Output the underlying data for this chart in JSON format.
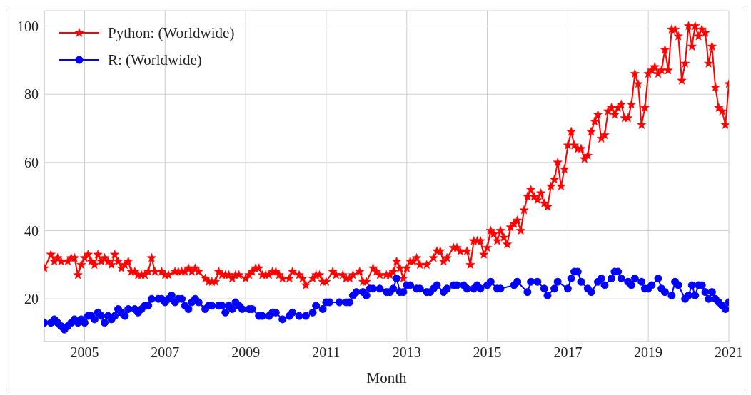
{
  "chart_data": {
    "type": "line",
    "xlabel": "Month",
    "grid": true,
    "legend": "top left",
    "line_style": "solid",
    "xlim": [
      "2004-01",
      "2021-01"
    ],
    "xticks": [
      "2005",
      "2007",
      "2009",
      "2011",
      "2013",
      "2015",
      "2017",
      "2019",
      "2021"
    ],
    "ylim": [
      7.5,
      104.5
    ],
    "yticks": [
      20,
      40,
      60,
      80,
      100
    ],
    "series": [
      {
        "name": "Python: (Worldwide)",
        "color": "#ff0000",
        "marker": "star",
        "x": [
          "2004-01",
          "2004-03",
          "2004-04",
          "2004-05",
          "2004-06",
          "2004-08",
          "2004-09",
          "2004-10",
          "2004-11",
          "2004-12",
          "2005-01",
          "2005-02",
          "2005-03",
          "2005-04",
          "2005-05",
          "2005-06",
          "2005-07",
          "2005-08",
          "2005-09",
          "2005-10",
          "2005-11",
          "2005-12",
          "2006-01",
          "2006-02",
          "2006-03",
          "2006-04",
          "2006-05",
          "2006-06",
          "2006-07",
          "2006-08",
          "2006-09",
          "2006-10",
          "2006-12",
          "2007-01",
          "2007-02",
          "2007-04",
          "2007-05",
          "2007-06",
          "2007-07",
          "2007-08",
          "2007-09",
          "2007-10",
          "2007-11",
          "2008-01",
          "2008-02",
          "2008-03",
          "2008-04",
          "2008-05",
          "2008-06",
          "2008-07",
          "2008-08",
          "2008-09",
          "2008-10",
          "2008-11",
          "2009-01",
          "2009-02",
          "2009-03",
          "2009-04",
          "2009-05",
          "2009-06",
          "2009-07",
          "2009-08",
          "2009-09",
          "2009-10",
          "2009-11",
          "2009-12",
          "2010-02",
          "2010-03",
          "2010-05",
          "2010-06",
          "2010-07",
          "2010-09",
          "2010-10",
          "2010-11",
          "2010-12",
          "2011-01",
          "2011-03",
          "2011-04",
          "2011-06",
          "2011-07",
          "2011-08",
          "2011-09",
          "2011-11",
          "2011-12",
          "2012-01",
          "2012-03",
          "2012-04",
          "2012-05",
          "2012-07",
          "2012-08",
          "2012-09",
          "2012-10",
          "2012-11",
          "2012-12",
          "2013-01",
          "2013-02",
          "2013-03",
          "2013-04",
          "2013-05",
          "2013-07",
          "2013-09",
          "2013-10",
          "2013-11",
          "2013-12",
          "2014-01",
          "2014-03",
          "2014-04",
          "2014-05",
          "2014-07",
          "2014-08",
          "2014-09",
          "2014-10",
          "2014-11",
          "2014-12",
          "2015-01",
          "2015-02",
          "2015-03",
          "2015-04",
          "2015-05",
          "2015-06",
          "2015-07",
          "2015-08",
          "2015-09",
          "2015-10",
          "2015-11",
          "2015-12",
          "2016-01",
          "2016-02",
          "2016-03",
          "2016-04",
          "2016-05",
          "2016-06",
          "2016-07",
          "2016-08",
          "2016-09",
          "2016-10",
          "2016-11",
          "2016-12",
          "2017-01",
          "2017-02",
          "2017-03",
          "2017-04",
          "2017-05",
          "2017-06",
          "2017-07",
          "2017-08",
          "2017-09",
          "2017-10",
          "2017-11",
          "2017-12",
          "2018-01",
          "2018-02",
          "2018-03",
          "2018-04",
          "2018-05",
          "2018-06",
          "2018-07",
          "2018-08",
          "2018-09",
          "2018-10",
          "2018-11",
          "2018-12",
          "2019-01",
          "2019-02",
          "2019-03",
          "2019-04",
          "2019-05",
          "2019-06",
          "2019-07",
          "2019-08",
          "2019-09",
          "2019-10",
          "2019-11",
          "2019-12",
          "2020-01",
          "2020-02",
          "2020-03",
          "2020-04",
          "2020-05",
          "2020-06",
          "2020-07",
          "2020-08",
          "2020-09",
          "2020-10",
          "2020-11",
          "2020-12",
          "2021-01"
        ],
        "values": [
          29,
          33,
          31,
          32,
          31,
          31,
          32,
          32,
          27,
          30,
          32,
          33,
          31,
          30,
          33,
          31,
          32,
          31,
          30,
          33,
          31,
          29,
          30,
          31,
          28,
          28,
          27,
          27,
          27,
          28,
          32,
          28,
          28,
          27,
          27,
          28,
          28,
          28,
          28,
          29,
          28,
          29,
          28,
          26,
          25,
          25,
          25,
          28,
          27,
          27,
          27,
          26,
          27,
          27,
          26,
          27,
          28,
          29,
          29,
          27,
          27,
          27,
          28,
          28,
          27,
          26,
          26,
          28,
          27,
          26,
          24,
          26,
          27,
          27,
          25,
          25,
          28,
          27,
          27,
          26,
          26,
          27,
          28,
          25,
          25,
          29,
          28,
          27,
          27,
          27,
          28,
          31,
          29,
          26,
          29,
          31,
          31,
          32,
          30,
          30,
          32,
          34,
          34,
          31,
          32,
          35,
          35,
          34,
          34,
          30,
          37,
          37,
          37,
          33,
          35,
          40,
          39,
          37,
          40,
          38,
          36,
          41,
          42,
          43,
          40,
          46,
          50,
          52,
          50,
          49,
          51,
          48,
          47,
          53,
          55,
          60,
          53,
          58,
          65,
          69,
          65,
          64,
          64,
          61,
          62,
          69,
          72,
          74,
          67,
          68,
          75,
          76,
          74,
          76,
          77,
          73,
          73,
          77,
          86,
          83,
          71,
          76,
          86,
          87,
          88,
          86,
          87,
          93,
          87,
          99,
          99,
          97,
          84,
          89,
          100,
          94,
          100,
          97,
          99,
          98,
          89,
          94,
          82,
          76,
          75,
          71,
          83
        ]
      },
      {
        "name": "R: (Worldwide)",
        "color": "#0000ff",
        "marker": "circle",
        "x": [
          "2004-01",
          "2004-03",
          "2004-04",
          "2004-05",
          "2004-06",
          "2004-07",
          "2004-08",
          "2004-09",
          "2004-10",
          "2004-11",
          "2004-12",
          "2005-01",
          "2005-02",
          "2005-03",
          "2005-04",
          "2005-05",
          "2005-06",
          "2005-07",
          "2005-08",
          "2005-09",
          "2005-10",
          "2005-11",
          "2005-12",
          "2006-01",
          "2006-02",
          "2006-04",
          "2006-05",
          "2006-06",
          "2006-07",
          "2006-08",
          "2006-09",
          "2006-11",
          "2006-12",
          "2007-01",
          "2007-02",
          "2007-03",
          "2007-04",
          "2007-05",
          "2007-06",
          "2007-07",
          "2007-08",
          "2007-09",
          "2007-10",
          "2007-11",
          "2008-01",
          "2008-02",
          "2008-03",
          "2008-05",
          "2008-06",
          "2008-07",
          "2008-08",
          "2008-09",
          "2008-10",
          "2008-11",
          "2008-12",
          "2009-02",
          "2009-03",
          "2009-05",
          "2009-06",
          "2009-08",
          "2009-09",
          "2009-10",
          "2009-12",
          "2010-02",
          "2010-03",
          "2010-05",
          "2010-07",
          "2010-09",
          "2010-10",
          "2010-12",
          "2011-01",
          "2011-02",
          "2011-05",
          "2011-07",
          "2011-08",
          "2011-09",
          "2011-10",
          "2011-12",
          "2012-01",
          "2012-02",
          "2012-03",
          "2012-05",
          "2012-07",
          "2012-08",
          "2012-09",
          "2012-10",
          "2012-11",
          "2012-12",
          "2013-01",
          "2013-02",
          "2013-04",
          "2013-05",
          "2013-07",
          "2013-08",
          "2013-09",
          "2013-10",
          "2013-12",
          "2014-01",
          "2014-03",
          "2014-04",
          "2014-06",
          "2014-07",
          "2014-09",
          "2014-10",
          "2014-11",
          "2015-01",
          "2015-02",
          "2015-04",
          "2015-05",
          "2015-09",
          "2015-10",
          "2016-01",
          "2016-02",
          "2016-04",
          "2016-06",
          "2016-07",
          "2016-09",
          "2016-10",
          "2017-01",
          "2017-02",
          "2017-03",
          "2017-04",
          "2017-05",
          "2017-07",
          "2017-08",
          "2017-10",
          "2017-11",
          "2017-12",
          "2018-02",
          "2018-03",
          "2018-04",
          "2018-05",
          "2018-07",
          "2018-08",
          "2018-09",
          "2018-11",
          "2018-12",
          "2019-01",
          "2019-02",
          "2019-04",
          "2019-05",
          "2019-06",
          "2019-08",
          "2019-09",
          "2019-10",
          "2019-12",
          "2020-01",
          "2020-02",
          "2020-03",
          "2020-04",
          "2020-05",
          "2020-06",
          "2020-07",
          "2020-08",
          "2020-09",
          "2020-10",
          "2020-11",
          "2020-12",
          "2021-01"
        ],
        "values": [
          13,
          13,
          14,
          13,
          12,
          11,
          12,
          13,
          14,
          13,
          14,
          13,
          15,
          15,
          14,
          16,
          15,
          13,
          15,
          14,
          15,
          17,
          16,
          15,
          17,
          17,
          16,
          17,
          18,
          18,
          20,
          20,
          20,
          19,
          20,
          21,
          19,
          20,
          20,
          18,
          17,
          19,
          20,
          19,
          17,
          18,
          18,
          18,
          18,
          16,
          18,
          17,
          19,
          18,
          17,
          17,
          17,
          15,
          15,
          15,
          16,
          16,
          14,
          15,
          16,
          15,
          15,
          16,
          18,
          17,
          19,
          19,
          19,
          19,
          19,
          21,
          22,
          22,
          21,
          23,
          23,
          23,
          22,
          22,
          23,
          26,
          22,
          22,
          24,
          24,
          23,
          23,
          22,
          22,
          23,
          24,
          22,
          23,
          24,
          24,
          24,
          23,
          23,
          24,
          23,
          24,
          25,
          23,
          23,
          24,
          25,
          22,
          25,
          25,
          23,
          21,
          23,
          25,
          23,
          26,
          28,
          28,
          25,
          23,
          22,
          25,
          26,
          24,
          26,
          28,
          28,
          26,
          25,
          24,
          26,
          25,
          23,
          23,
          24,
          26,
          23,
          22,
          21,
          25,
          24,
          20,
          21,
          24,
          21,
          24,
          24,
          22,
          20,
          22,
          20,
          19,
          18,
          17,
          19
        ]
      }
    ]
  }
}
